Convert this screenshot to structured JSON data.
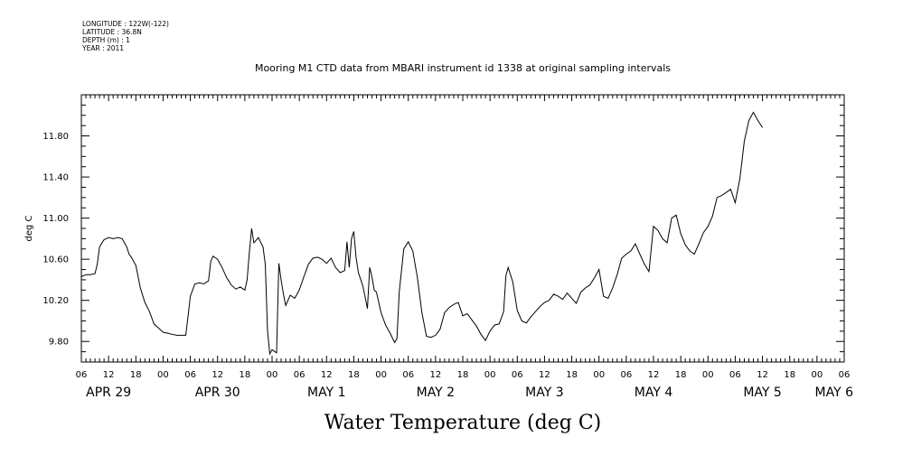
{
  "meta": {
    "longitude": "LONGITUDE : 122W(-122)",
    "latitude": "LATITUDE : 36.8N",
    "depth": "DEPTH (m) : 1",
    "year": "YEAR : 2011"
  },
  "chart_data": {
    "type": "line",
    "title": "Mooring M1 CTD data from MBARI instrument id 1338 at original sampling intervals",
    "xlabel": "Water Temperature (deg C)",
    "ylabel": "deg C",
    "ylim": [
      9.6,
      12.2
    ],
    "xlim_hours": [
      0,
      168
    ],
    "y_ticks": [
      "9.80",
      "10.20",
      "10.60",
      "11.00",
      "11.40",
      "11.80"
    ],
    "x_hour_labels": [
      "06",
      "12",
      "18",
      "00",
      "06",
      "12",
      "18",
      "00",
      "06",
      "12",
      "18",
      "00",
      "06",
      "12",
      "18",
      "00",
      "06",
      "12",
      "18",
      "00",
      "06",
      "12",
      "18",
      "00",
      "06",
      "12",
      "18",
      "00",
      "06"
    ],
    "date_labels": [
      "APR 29",
      "APR 30",
      "MAY 1",
      "MAY 2",
      "MAY 3",
      "MAY 4",
      "MAY 5",
      "MAY 6"
    ],
    "grid": false,
    "series": [
      {
        "values": [
          [
            0,
            10.43
          ],
          [
            1,
            10.45
          ],
          [
            2,
            10.45
          ],
          [
            3,
            10.46
          ],
          [
            3.5,
            10.55
          ],
          [
            4,
            10.72
          ],
          [
            5,
            10.79
          ],
          [
            6,
            10.81
          ],
          [
            7,
            10.8
          ],
          [
            8,
            10.81
          ],
          [
            9,
            10.8
          ],
          [
            10,
            10.72
          ],
          [
            10.5,
            10.65
          ],
          [
            11,
            10.62
          ],
          [
            12,
            10.54
          ],
          [
            13,
            10.32
          ],
          [
            14,
            10.18
          ],
          [
            15,
            10.09
          ],
          [
            16,
            9.97
          ],
          [
            17,
            9.93
          ],
          [
            18,
            9.89
          ],
          [
            19,
            9.88
          ],
          [
            20,
            9.87
          ],
          [
            21,
            9.86
          ],
          [
            22,
            9.86
          ],
          [
            23,
            9.86
          ],
          [
            23.5,
            10.05
          ],
          [
            24,
            10.24
          ],
          [
            25,
            10.36
          ],
          [
            26,
            10.37
          ],
          [
            27,
            10.36
          ],
          [
            28,
            10.39
          ],
          [
            28.5,
            10.58
          ],
          [
            29,
            10.63
          ],
          [
            30,
            10.6
          ],
          [
            31,
            10.52
          ],
          [
            32,
            10.42
          ],
          [
            33,
            10.35
          ],
          [
            34,
            10.31
          ],
          [
            35,
            10.33
          ],
          [
            36,
            10.3
          ],
          [
            36.5,
            10.4
          ],
          [
            37,
            10.67
          ],
          [
            37.5,
            10.9
          ],
          [
            38,
            10.76
          ],
          [
            39,
            10.81
          ],
          [
            40,
            10.72
          ],
          [
            40.5,
            10.55
          ],
          [
            41,
            9.9
          ],
          [
            41.5,
            9.68
          ],
          [
            42,
            9.72
          ],
          [
            43,
            9.69
          ],
          [
            43.5,
            10.56
          ],
          [
            44,
            10.4
          ],
          [
            44.5,
            10.26
          ],
          [
            45,
            10.15
          ],
          [
            46,
            10.25
          ],
          [
            47,
            10.22
          ],
          [
            48,
            10.3
          ],
          [
            49,
            10.43
          ],
          [
            50,
            10.55
          ],
          [
            51,
            10.61
          ],
          [
            52,
            10.62
          ],
          [
            53,
            10.6
          ],
          [
            54,
            10.56
          ],
          [
            55,
            10.61
          ],
          [
            56,
            10.52
          ],
          [
            57,
            10.47
          ],
          [
            58,
            10.49
          ],
          [
            58.5,
            10.77
          ],
          [
            59,
            10.52
          ],
          [
            59.5,
            10.8
          ],
          [
            60,
            10.87
          ],
          [
            60.5,
            10.62
          ],
          [
            61,
            10.47
          ],
          [
            62,
            10.34
          ],
          [
            63,
            10.12
          ],
          [
            63.5,
            10.52
          ],
          [
            64,
            10.43
          ],
          [
            64.5,
            10.3
          ],
          [
            65,
            10.28
          ],
          [
            66,
            10.08
          ],
          [
            67,
            9.96
          ],
          [
            68,
            9.88
          ],
          [
            69,
            9.79
          ],
          [
            69.5,
            9.83
          ],
          [
            70,
            10.28
          ],
          [
            71,
            10.7
          ],
          [
            72,
            10.77
          ],
          [
            73,
            10.68
          ],
          [
            74,
            10.42
          ],
          [
            75,
            10.08
          ],
          [
            76,
            9.85
          ],
          [
            77,
            9.84
          ],
          [
            78,
            9.86
          ],
          [
            79,
            9.92
          ],
          [
            80,
            10.08
          ],
          [
            81,
            10.13
          ],
          [
            82,
            10.16
          ],
          [
            83,
            10.18
          ],
          [
            84,
            10.05
          ],
          [
            85,
            10.07
          ],
          [
            86,
            10.01
          ],
          [
            87,
            9.95
          ],
          [
            88,
            9.87
          ],
          [
            89,
            9.81
          ],
          [
            90,
            9.9
          ],
          [
            91,
            9.96
          ],
          [
            92,
            9.97
          ],
          [
            93,
            10.09
          ],
          [
            93.5,
            10.44
          ],
          [
            94,
            10.52
          ],
          [
            95,
            10.38
          ],
          [
            96,
            10.1
          ],
          [
            97,
            10.0
          ],
          [
            98,
            9.98
          ],
          [
            99,
            10.04
          ],
          [
            100,
            10.09
          ],
          [
            101,
            10.14
          ],
          [
            102,
            10.18
          ],
          [
            103,
            10.2
          ],
          [
            104,
            10.26
          ],
          [
            105,
            10.24
          ],
          [
            106,
            10.21
          ],
          [
            107,
            10.27
          ],
          [
            108,
            10.22
          ],
          [
            109,
            10.17
          ],
          [
            110,
            10.28
          ],
          [
            111,
            10.32
          ],
          [
            112,
            10.35
          ],
          [
            113,
            10.42
          ],
          [
            114,
            10.5
          ],
          [
            115,
            10.24
          ],
          [
            116,
            10.22
          ],
          [
            117,
            10.32
          ],
          [
            118,
            10.45
          ],
          [
            119,
            10.61
          ],
          [
            120,
            10.65
          ],
          [
            121,
            10.68
          ],
          [
            122,
            10.75
          ],
          [
            123,
            10.65
          ],
          [
            124,
            10.55
          ],
          [
            125,
            10.48
          ],
          [
            126,
            10.92
          ],
          [
            127,
            10.88
          ],
          [
            128,
            10.8
          ],
          [
            129,
            10.76
          ],
          [
            130,
            11.0
          ],
          [
            131,
            11.03
          ],
          [
            132,
            10.85
          ],
          [
            133,
            10.74
          ],
          [
            134,
            10.68
          ],
          [
            135,
            10.65
          ],
          [
            136,
            10.75
          ],
          [
            137,
            10.86
          ],
          [
            138,
            10.92
          ],
          [
            139,
            11.02
          ],
          [
            140,
            11.2
          ],
          [
            141,
            11.22
          ],
          [
            142,
            11.25
          ],
          [
            143,
            11.28
          ],
          [
            144,
            11.15
          ],
          [
            145,
            11.38
          ],
          [
            146,
            11.75
          ],
          [
            147,
            11.95
          ],
          [
            148,
            12.03
          ],
          [
            149,
            11.95
          ],
          [
            150,
            11.88
          ]
        ]
      }
    ]
  }
}
